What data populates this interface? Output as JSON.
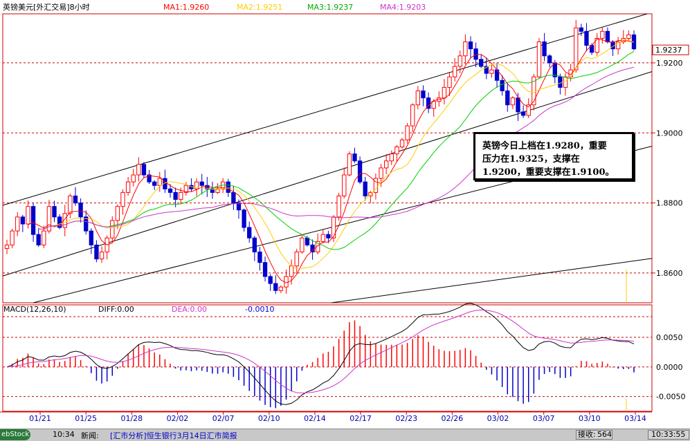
{
  "header": {
    "title": "英镑美元[外汇交易]8小时",
    "ma1": "MA1:1.9260",
    "ma2": "MA2:1.9251",
    "ma3": "MA3:1.9237",
    "ma4": "MA4:1.9203"
  },
  "macd_header": {
    "name": "MACD(12,26,10)",
    "diff": "DIFF:0.00",
    "dea": "DEA:0.00",
    "macd": "-0.0010"
  },
  "colors": {
    "ma1": "#ff0000",
    "ma2": "#ffcc00",
    "ma3": "#00cc00",
    "ma4": "#cc33cc",
    "up": "#ff0000",
    "down": "#0000cc",
    "grid": "#cc0000",
    "diff": "#000000",
    "dea": "#cc33cc"
  },
  "annotation": {
    "line1": "英镑今日上档在1.9280，重要",
    "line2": "压力在1.9325，支撑在",
    "line3": "1.9200，重要支撑在1.9100。"
  },
  "status_bar": {
    "start": "ebStock",
    "time": "10:34",
    "news_label": "新闻:",
    "headline": "[汇市分析]恒生银行3月14日汇市简报",
    "close_label": "接收:",
    "close_value": "564",
    "clock": "10:33:55"
  },
  "chart_data": [
    {
      "type": "candlestick",
      "title": "英镑美元[外汇交易]8小时",
      "x_ticks": [
        "01/21",
        "01/25",
        "01/28",
        "02/02",
        "02/07",
        "02/10",
        "02/14",
        "02/17",
        "02/23",
        "02/26",
        "03/02",
        "03/07",
        "03/10",
        "03/14"
      ],
      "y_ticks": [
        1.86,
        1.88,
        1.9,
        1.92
      ],
      "y_tick_labels": [
        "1.8600",
        "1.8800",
        "1.9000",
        "1.9200"
      ],
      "last_price_label": "1.9237",
      "ylim": [
        1.8515,
        1.934
      ],
      "close": [
        1.868,
        1.872,
        1.876,
        1.874,
        1.879,
        1.871,
        1.868,
        1.872,
        1.879,
        1.876,
        1.873,
        1.877,
        1.882,
        1.88,
        1.876,
        1.872,
        1.868,
        1.864,
        1.866,
        1.87,
        1.875,
        1.879,
        1.883,
        1.886,
        1.888,
        1.891,
        1.888,
        1.886,
        1.885,
        1.887,
        1.884,
        1.883,
        1.881,
        1.883,
        1.885,
        1.884,
        1.886,
        1.885,
        1.884,
        1.883,
        1.884,
        1.886,
        1.883,
        1.88,
        1.878,
        1.873,
        1.87,
        1.866,
        1.863,
        1.859,
        1.857,
        1.855,
        1.856,
        1.859,
        1.862,
        1.866,
        1.87,
        1.868,
        1.866,
        1.869,
        1.871,
        1.87,
        1.876,
        1.882,
        1.888,
        1.894,
        1.892,
        1.886,
        1.882,
        1.883,
        1.887,
        1.89,
        1.892,
        1.894,
        1.896,
        1.898,
        1.902,
        1.908,
        1.912,
        1.91,
        1.907,
        1.909,
        1.91,
        1.913,
        1.916,
        1.919,
        1.922,
        1.926,
        1.924,
        1.921,
        1.919,
        1.917,
        1.918,
        1.915,
        1.912,
        1.908,
        1.91,
        1.906,
        1.905,
        1.908,
        1.916,
        1.926,
        1.922,
        1.92,
        1.916,
        1.913,
        1.916,
        1.918,
        1.93,
        1.929,
        1.925,
        1.923,
        1.927,
        1.929,
        1.926,
        1.924,
        1.926,
        1.927,
        1.928,
        1.924
      ],
      "series": [
        {
          "name": "MA1:1.9260"
        },
        {
          "name": "MA2:1.9251"
        },
        {
          "name": "MA3:1.9237"
        },
        {
          "name": "MA4:1.9203"
        }
      ],
      "channel_lines": [
        {
          "from": [
            "01/21",
            1.8825
          ],
          "to": [
            "03/14",
            1.933
          ]
        },
        {
          "from": [
            "01/21",
            1.8625
          ],
          "to": [
            "03/14",
            1.916
          ]
        },
        {
          "from": [
            "01/21",
            1.852
          ],
          "to": [
            "03/14",
            1.895
          ]
        },
        {
          "from": [
            "01/21",
            1.84
          ],
          "to": [
            "03/14",
            1.8635
          ]
        }
      ]
    },
    {
      "type": "bar",
      "title": "MACD(12,26,10)",
      "y_ticks": [
        0.005,
        0.0,
        -0.005
      ],
      "y_tick_labels": [
        "0.0050",
        "0.0000",
        "-0.0050"
      ],
      "ylim": [
        -0.0075,
        0.0105
      ]
    }
  ]
}
